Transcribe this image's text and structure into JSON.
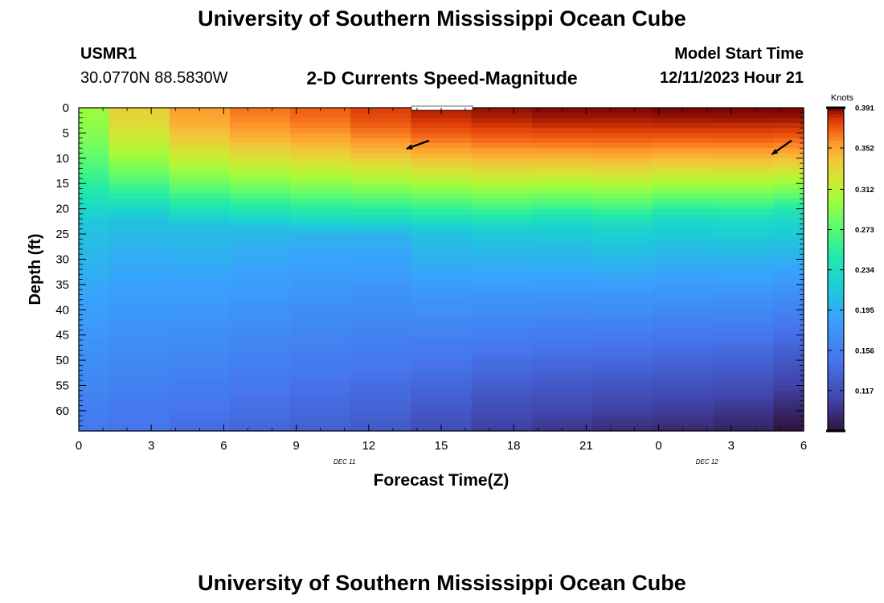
{
  "header": {
    "title": "University of Southern Mississippi Ocean Cube",
    "station": "USMR1",
    "coords": "30.0770N  88.5830W",
    "subtitle": "2-D Currents Speed-Magnitude",
    "model_label": "Model Start Time",
    "model_time": "12/11/2023 Hour 21"
  },
  "footer": {
    "title": "University of Southern Mississippi Ocean Cube"
  },
  "colors": {
    "deep_red": "#7a0403",
    "red": "#c42503",
    "orange": "#f46617",
    "yellow": "#e1dd37",
    "green": "#a2fc3c",
    "teal": "#1ae4b6",
    "blue": "#3e9bfe",
    "indigo": "#4145ab",
    "dark": "#30123b"
  },
  "chart_data": {
    "type": "heatmap",
    "title": "2-D Currents Speed-Magnitude",
    "xlabel": "Forecast Time(Z)",
    "ylabel": "Depth (ft)",
    "x_ticks": [
      "0",
      "3",
      "6",
      "9",
      "12",
      "15",
      "18",
      "21",
      "0",
      "3",
      "6"
    ],
    "x_hours": [
      0,
      3,
      6,
      9,
      12,
      15,
      18,
      21,
      24,
      27,
      30
    ],
    "date_labels": [
      {
        "hour": 11,
        "label": "DEC 11"
      },
      {
        "hour": 26,
        "label": "DEC 12"
      }
    ],
    "y_ticks": [
      "0",
      "5",
      "10",
      "15",
      "20",
      "25",
      "30",
      "35",
      "40",
      "45",
      "50",
      "55",
      "60"
    ],
    "ylim": [
      0,
      64
    ],
    "xlim": [
      0,
      30
    ],
    "colorbar": {
      "unit": "Knots",
      "ticks": [
        "0.391",
        "0.352",
        "0.312",
        "0.273",
        "0.234",
        "0.195",
        "0.156",
        "0.117"
      ],
      "min": 0.078,
      "max": 0.391
    },
    "columns": [
      {
        "x_start": 0.0,
        "x_end": 1.25,
        "surface": 0.3,
        "mid": 0.215,
        "bottom": 0.15,
        "mid_depth": 22
      },
      {
        "x_start": 1.25,
        "x_end": 3.75,
        "surface": 0.335,
        "mid": 0.21,
        "bottom": 0.145,
        "mid_depth": 22
      },
      {
        "x_start": 3.75,
        "x_end": 6.25,
        "surface": 0.355,
        "mid": 0.21,
        "bottom": 0.14,
        "mid_depth": 23
      },
      {
        "x_start": 6.25,
        "x_end": 8.75,
        "surface": 0.365,
        "mid": 0.205,
        "bottom": 0.135,
        "mid_depth": 24
      },
      {
        "x_start": 8.75,
        "x_end": 11.25,
        "surface": 0.37,
        "mid": 0.2,
        "bottom": 0.13,
        "mid_depth": 25
      },
      {
        "x_start": 11.25,
        "x_end": 13.75,
        "surface": 0.378,
        "mid": 0.2,
        "bottom": 0.125,
        "mid_depth": 25
      },
      {
        "x_start": 13.75,
        "x_end": 16.25,
        "surface": 0.385,
        "mid": 0.215,
        "bottom": 0.115,
        "mid_depth": 24
      },
      {
        "x_start": 16.25,
        "x_end": 18.75,
        "surface": 0.388,
        "mid": 0.22,
        "bottom": 0.105,
        "mid_depth": 24
      },
      {
        "x_start": 18.75,
        "x_end": 21.25,
        "surface": 0.39,
        "mid": 0.225,
        "bottom": 0.1,
        "mid_depth": 23
      },
      {
        "x_start": 21.25,
        "x_end": 23.75,
        "surface": 0.39,
        "mid": 0.23,
        "bottom": 0.095,
        "mid_depth": 23
      },
      {
        "x_start": 23.75,
        "x_end": 26.25,
        "surface": 0.391,
        "mid": 0.23,
        "bottom": 0.092,
        "mid_depth": 22
      },
      {
        "x_start": 26.25,
        "x_end": 28.75,
        "surface": 0.391,
        "mid": 0.232,
        "bottom": 0.088,
        "mid_depth": 22
      },
      {
        "x_start": 28.75,
        "x_end": 30.0,
        "surface": 0.391,
        "mid": 0.235,
        "bottom": 0.078,
        "mid_depth": 21
      }
    ],
    "vectors": [
      {
        "hour": 14.5,
        "depth": 6.5,
        "angle_deg": 200
      },
      {
        "hour": 29.5,
        "depth": 6.5,
        "angle_deg": 215
      }
    ]
  }
}
